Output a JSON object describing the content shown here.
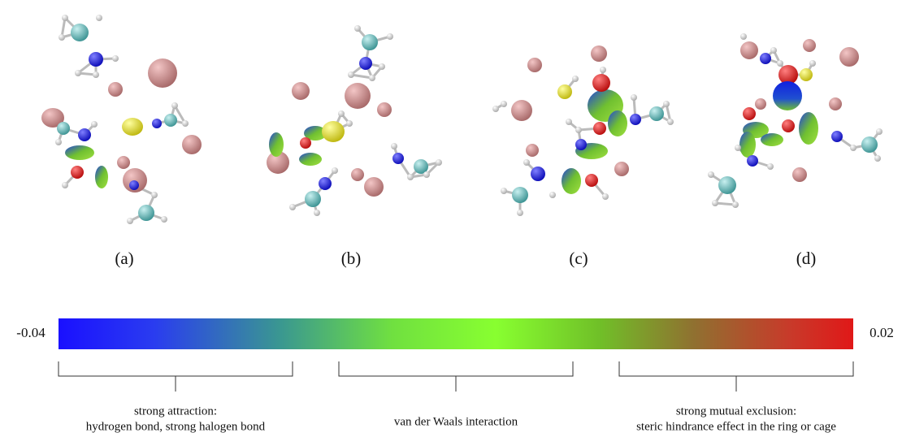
{
  "panels": [
    {
      "label": "(a)"
    },
    {
      "label": "(b)"
    },
    {
      "label": "(c)"
    },
    {
      "label": "(d)"
    }
  ],
  "colorbar": {
    "min": -0.04,
    "max": 0.02
  },
  "regions": [
    {
      "lines": [
        "strong attraction:",
        "hydrogen bond, strong halogen bond"
      ]
    },
    {
      "lines": [
        "van der Waals interaction"
      ]
    },
    {
      "lines": [
        "strong mutual exclusion:",
        "steric hindrance effect in the ring or cage"
      ]
    }
  ]
}
